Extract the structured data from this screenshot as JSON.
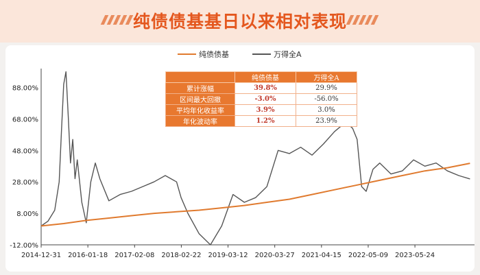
{
  "header": {
    "title": "纯债债基基日以来相对表现"
  },
  "legend": {
    "series1": "纯债债基",
    "series2": "万得全A"
  },
  "table": {
    "columns": [
      "",
      "纯债债基",
      "万得全A"
    ],
    "rows": [
      {
        "label": "累计涨幅",
        "v1": "39.8%",
        "v2": "29.9%"
      },
      {
        "label": "区间最大回撤",
        "v1": "-3.0%",
        "v2": "-56.0%"
      },
      {
        "label": "平均年化收益率",
        "v1": "3.9%",
        "v2": "3.0%"
      },
      {
        "label": "年化波动率",
        "v1": "1.2%",
        "v2": "23.9%"
      }
    ]
  },
  "colors": {
    "bond": "#e07a2e",
    "index": "#555555",
    "accent": "#e4571e"
  },
  "chart_data": {
    "type": "line",
    "x_tick_labels": [
      "2014-12-31",
      "2016-01-18",
      "2017-02-08",
      "2018-02-22",
      "2019-03-12",
      "2020-03-27",
      "2021-04-15",
      "2022-05-09",
      "2023-05-24"
    ],
    "y_tick_labels": [
      "-12.00%",
      "8.00%",
      "28.00%",
      "48.00%",
      "68.00%",
      "88.00%"
    ],
    "ylim": [
      -12,
      100
    ],
    "xlim": [
      0,
      9.6
    ],
    "series": [
      {
        "name": "纯债债基",
        "points": [
          [
            0,
            0
          ],
          [
            0.5,
            1.5
          ],
          [
            1,
            3.5
          ],
          [
            1.5,
            5
          ],
          [
            2,
            6.5
          ],
          [
            2.5,
            8
          ],
          [
            3,
            9
          ],
          [
            3.5,
            10
          ],
          [
            4,
            11.5
          ],
          [
            4.5,
            13
          ],
          [
            5,
            15
          ],
          [
            5.5,
            17
          ],
          [
            6,
            20
          ],
          [
            6.5,
            23
          ],
          [
            7,
            26
          ],
          [
            7.5,
            29
          ],
          [
            8,
            32
          ],
          [
            8.5,
            35
          ],
          [
            9,
            37
          ],
          [
            9.5,
            39.8
          ]
        ]
      },
      {
        "name": "万得全A",
        "points": [
          [
            0,
            0
          ],
          [
            0.15,
            3
          ],
          [
            0.3,
            10
          ],
          [
            0.4,
            28
          ],
          [
            0.45,
            60
          ],
          [
            0.5,
            90
          ],
          [
            0.55,
            98
          ],
          [
            0.6,
            70
          ],
          [
            0.65,
            40
          ],
          [
            0.7,
            55
          ],
          [
            0.75,
            30
          ],
          [
            0.8,
            42
          ],
          [
            0.9,
            15
          ],
          [
            1,
            2
          ],
          [
            1.1,
            28
          ],
          [
            1.2,
            40
          ],
          [
            1.3,
            30
          ],
          [
            1.5,
            16
          ],
          [
            1.75,
            20
          ],
          [
            2,
            22
          ],
          [
            2.25,
            25
          ],
          [
            2.5,
            28
          ],
          [
            2.75,
            32
          ],
          [
            3,
            28
          ],
          [
            3.1,
            18
          ],
          [
            3.25,
            8
          ],
          [
            3.5,
            -5
          ],
          [
            3.75,
            -12
          ],
          [
            4,
            0
          ],
          [
            4.25,
            20
          ],
          [
            4.5,
            15
          ],
          [
            4.75,
            18
          ],
          [
            5,
            25
          ],
          [
            5.25,
            48
          ],
          [
            5.5,
            46
          ],
          [
            5.75,
            50
          ],
          [
            6,
            45
          ],
          [
            6.25,
            52
          ],
          [
            6.5,
            60
          ],
          [
            6.75,
            66
          ],
          [
            6.9,
            62
          ],
          [
            7,
            55
          ],
          [
            7.1,
            25
          ],
          [
            7.2,
            22
          ],
          [
            7.35,
            36
          ],
          [
            7.5,
            40
          ],
          [
            7.75,
            33
          ],
          [
            8,
            35
          ],
          [
            8.25,
            42
          ],
          [
            8.5,
            38
          ],
          [
            8.75,
            40
          ],
          [
            9,
            35
          ],
          [
            9.25,
            32
          ],
          [
            9.5,
            29.9
          ]
        ]
      }
    ]
  }
}
